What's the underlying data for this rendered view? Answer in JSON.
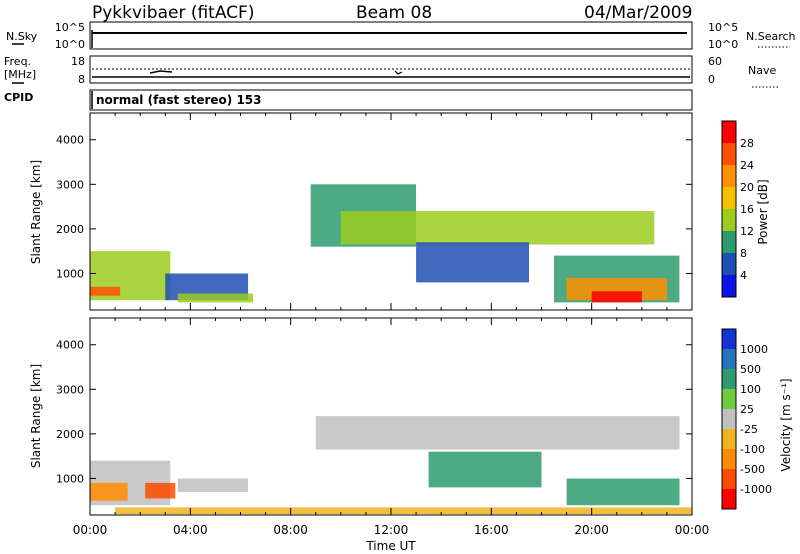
{
  "header": {
    "radar": "Pykkvibaer (fitACF)",
    "beam": "Beam 08",
    "date": "04/Mar/2009"
  },
  "noise_panel": {
    "left_label": "N.Sky",
    "left_ticks": [
      "10^5",
      "10^0"
    ],
    "right_ticks": [
      "10^5",
      "10^0"
    ],
    "right_label": "N.Search"
  },
  "freq_panel": {
    "left_label_1": "Freq.",
    "left_label_2": "[MHz]",
    "left_ticks": [
      "18",
      "8"
    ],
    "right_ticks": [
      "60",
      "0"
    ],
    "right_label": "Nave"
  },
  "cpid": {
    "label": "CPID",
    "mode": "normal (fast stereo) 153"
  },
  "axes": {
    "ylabel": "Slant Range [km]",
    "y_ticks": [
      "4000",
      "3000",
      "2000",
      "1000"
    ],
    "x_ticks": [
      "00:00",
      "04:00",
      "08:00",
      "12:00",
      "16:00",
      "20:00",
      "00:00"
    ],
    "xlabel": "Time UT"
  },
  "power_scale": {
    "label": "Power [dB]",
    "ticks": [
      "28",
      "24",
      "20",
      "16",
      "12",
      "8",
      "4"
    ],
    "colors": [
      "#ff0000",
      "#ff5000",
      "#ff9000",
      "#f2c200",
      "#9bcd1e",
      "#2e9b6e",
      "#1e4fb4",
      "#0a14e6"
    ]
  },
  "velocity_scale": {
    "label": "Velocity [m s⁻¹]",
    "ticks": [
      "1000",
      "500",
      "100",
      "25",
      "-25",
      "-100",
      "-500",
      "-1000"
    ],
    "colors": [
      "#1434d2",
      "#2474b8",
      "#2e9b6e",
      "#6ccc3c",
      "#c0c0c0",
      "#f0b41e",
      "#ff8c00",
      "#ff4b00",
      "#ff0000"
    ]
  },
  "chart_data": {
    "type": "heatmap",
    "x_range": [
      "00:00",
      "24:00"
    ],
    "y_range_km": [
      180,
      4600
    ],
    "panels": [
      {
        "name": "Power",
        "units": "dB",
        "regions": [
          {
            "t0": 0.0,
            "t1": 3.2,
            "r0": 400,
            "r1": 1500,
            "value": 12
          },
          {
            "t0": 0.0,
            "t1": 1.2,
            "r0": 500,
            "r1": 700,
            "value": 24
          },
          {
            "t0": 3.0,
            "t1": 6.3,
            "r0": 400,
            "r1": 1000,
            "value": 6
          },
          {
            "t0": 3.5,
            "t1": 6.5,
            "r0": 350,
            "r1": 550,
            "value": 14
          },
          {
            "t0": 8.8,
            "t1": 13.0,
            "r0": 1600,
            "r1": 3000,
            "value": 10
          },
          {
            "t0": 10.0,
            "t1": 22.5,
            "r0": 1650,
            "r1": 2400,
            "value": 14
          },
          {
            "t0": 13.0,
            "t1": 17.5,
            "r0": 800,
            "r1": 1700,
            "value": 6
          },
          {
            "t0": 18.5,
            "t1": 23.5,
            "r0": 350,
            "r1": 1400,
            "value": 8
          },
          {
            "t0": 19.0,
            "t1": 23.0,
            "r0": 400,
            "r1": 900,
            "value": 22
          },
          {
            "t0": 20.0,
            "t1": 22.0,
            "r0": 350,
            "r1": 600,
            "value": 28
          }
        ]
      },
      {
        "name": "Velocity",
        "units": "m s-1",
        "regions": [
          {
            "t0": 0.0,
            "t1": 3.2,
            "r0": 400,
            "r1": 1400,
            "value": 0
          },
          {
            "t0": 0.0,
            "t1": 1.5,
            "r0": 500,
            "r1": 900,
            "value": -300
          },
          {
            "t0": 2.2,
            "t1": 3.4,
            "r0": 550,
            "r1": 900,
            "value": -600
          },
          {
            "t0": 3.5,
            "t1": 6.3,
            "r0": 700,
            "r1": 1000,
            "value": 0
          },
          {
            "t0": 1.0,
            "t1": 24.0,
            "r0": 200,
            "r1": 350,
            "value": -60
          },
          {
            "t0": 9.0,
            "t1": 23.5,
            "r0": 1650,
            "r1": 2400,
            "value": 0
          },
          {
            "t0": 13.5,
            "t1": 18.0,
            "r0": 800,
            "r1": 1600,
            "value": 150
          },
          {
            "t0": 19.0,
            "t1": 23.5,
            "r0": 400,
            "r1": 1000,
            "value": 200
          }
        ]
      }
    ]
  }
}
